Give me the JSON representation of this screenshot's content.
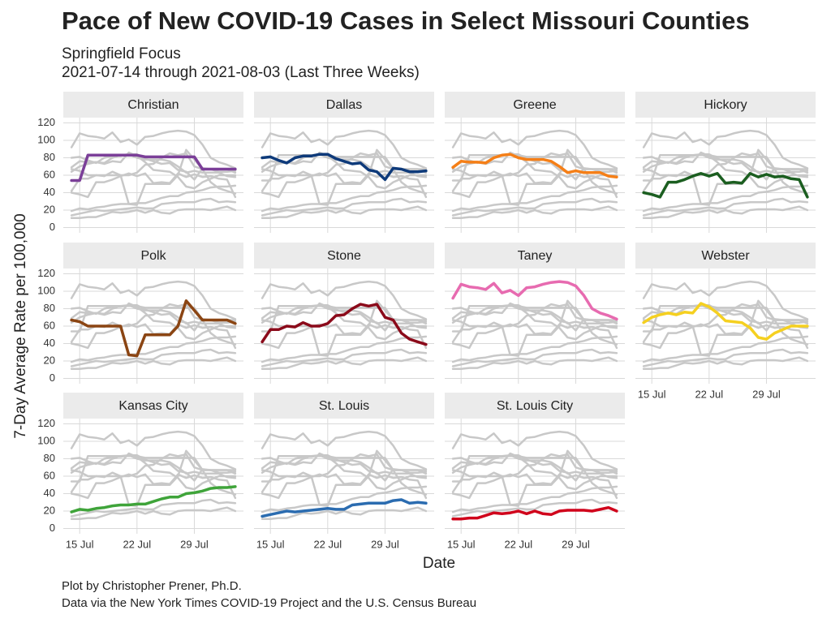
{
  "chart_data": {
    "type": "line",
    "title": "Pace of New COVID-19 Cases in Select Missouri Counties",
    "subtitle": [
      "Springfield Focus",
      "2021-07-14 through 2021-08-03 (Last Three Weeks)"
    ],
    "x_label": "Date",
    "y_label": "7-Day Average Rate per 100,000",
    "caption": [
      "Plot by Christopher Prener, Ph.D.",
      "Data via the New York Times COVID-19 Project and the U.S. Census Bureau"
    ],
    "x": [
      "2021-07-14",
      "2021-07-15",
      "2021-07-16",
      "2021-07-17",
      "2021-07-18",
      "2021-07-19",
      "2021-07-20",
      "2021-07-21",
      "2021-07-22",
      "2021-07-23",
      "2021-07-24",
      "2021-07-25",
      "2021-07-26",
      "2021-07-27",
      "2021-07-28",
      "2021-07-29",
      "2021-07-30",
      "2021-07-31",
      "2021-08-01",
      "2021-08-02",
      "2021-08-03"
    ],
    "xlim": [
      "2021-07-13",
      "2021-08-04"
    ],
    "xticks": [
      {
        "value": "2021-07-15",
        "label": "15 Jul"
      },
      {
        "value": "2021-07-22",
        "label": "22 Jul"
      },
      {
        "value": "2021-07-29",
        "label": "29 Jul"
      }
    ],
    "ylim": [
      -6,
      126
    ],
    "yticks": [
      0,
      20,
      40,
      60,
      80,
      100,
      120
    ],
    "grid": true,
    "context_color": "#c8c8c8",
    "series": [
      {
        "name": "Christian",
        "color": "#7b3f98",
        "values": [
          54,
          54,
          83,
          83,
          83,
          83,
          83,
          83,
          83,
          81,
          81,
          81,
          81,
          81,
          81,
          81,
          67,
          67,
          67,
          67,
          67
        ]
      },
      {
        "name": "Dallas",
        "color": "#0e3a7a",
        "values": [
          80,
          81,
          77,
          74,
          80,
          82,
          82,
          84,
          84,
          79,
          76,
          73,
          74,
          66,
          64,
          55,
          68,
          67,
          64,
          64,
          65
        ]
      },
      {
        "name": "Greene",
        "color": "#f57f17",
        "values": [
          69,
          76,
          75,
          75,
          74,
          80,
          83,
          84,
          80,
          78,
          78,
          78,
          76,
          70,
          63,
          65,
          63,
          63,
          63,
          59,
          58
        ]
      },
      {
        "name": "Hickory",
        "color": "#1b5e20",
        "values": [
          40,
          38,
          35,
          52,
          52,
          55,
          59,
          62,
          59,
          62,
          51,
          52,
          51,
          62,
          58,
          61,
          58,
          59,
          56,
          55,
          35
        ]
      },
      {
        "name": "Polk",
        "color": "#8b4513",
        "values": [
          67,
          65,
          60,
          60,
          60,
          60,
          60,
          27,
          26,
          50,
          50,
          50,
          50,
          60,
          89,
          78,
          67,
          67,
          67,
          67,
          63
        ]
      },
      {
        "name": "Stone",
        "color": "#8b0a1a",
        "values": [
          42,
          56,
          56,
          60,
          59,
          64,
          60,
          60,
          63,
          72,
          73,
          80,
          85,
          83,
          85,
          70,
          67,
          52,
          45,
          42,
          39
        ]
      },
      {
        "name": "Taney",
        "color": "#e76bb0",
        "values": [
          92,
          108,
          105,
          104,
          102,
          109,
          98,
          101,
          95,
          104,
          105,
          108,
          110,
          111,
          110,
          106,
          95,
          80,
          75,
          72,
          68
        ]
      },
      {
        "name": "Webster",
        "color": "#f5d020",
        "values": [
          64,
          70,
          73,
          75,
          73,
          76,
          75,
          86,
          82,
          75,
          66,
          65,
          64,
          58,
          47,
          45,
          52,
          56,
          60,
          60,
          60
        ]
      },
      {
        "name": "Kansas City",
        "color": "#3fa43a",
        "values": [
          19,
          22,
          21,
          23,
          24,
          26,
          27,
          27,
          28,
          28,
          31,
          34,
          36,
          36,
          40,
          41,
          43,
          46,
          47,
          47,
          48
        ]
      },
      {
        "name": "St. Louis",
        "color": "#2b6cb0",
        "values": [
          14,
          16,
          18,
          20,
          19,
          20,
          21,
          22,
          23,
          22,
          22,
          27,
          28,
          29,
          29,
          29,
          32,
          33,
          29,
          30,
          29
        ]
      },
      {
        "name": "St. Louis City",
        "color": "#d0021b",
        "values": [
          11,
          11,
          12,
          12,
          15,
          18,
          17,
          18,
          20,
          17,
          20,
          17,
          16,
          20,
          21,
          21,
          21,
          20,
          22,
          24,
          20
        ]
      }
    ]
  }
}
